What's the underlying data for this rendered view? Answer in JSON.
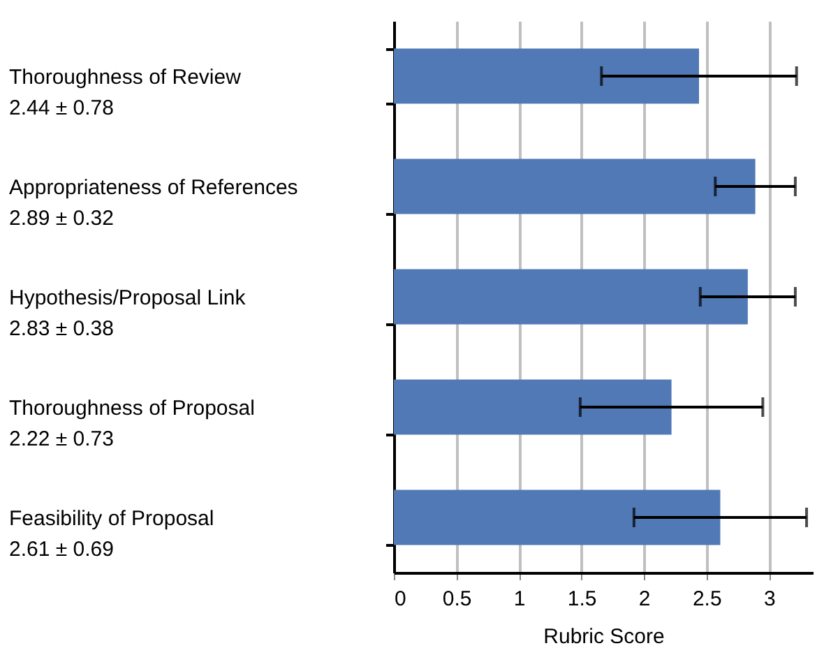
{
  "chart_data": {
    "type": "bar",
    "orientation": "horizontal",
    "categories": [
      "Thoroughness of Review\n2.44 ± 0.78",
      "Appropriateness of References\n2.89 ± 0.32",
      "Hypothesis/Proposal Link\n2.83 ± 0.38",
      "Thoroughness of Proposal\n2.22 ± 0.73",
      "Feasibility of Proposal\n2.61 ± 0.69"
    ],
    "values": [
      2.44,
      2.89,
      2.83,
      2.22,
      2.61
    ],
    "errors": [
      0.78,
      0.32,
      0.38,
      0.73,
      0.69
    ],
    "color": "#5179b5",
    "xlabel": "Rubric Score",
    "xlim": [
      0,
      3.35
    ],
    "xticks": [
      0,
      0.5,
      1,
      1.5,
      2,
      2.5,
      3
    ],
    "grid": "x"
  }
}
